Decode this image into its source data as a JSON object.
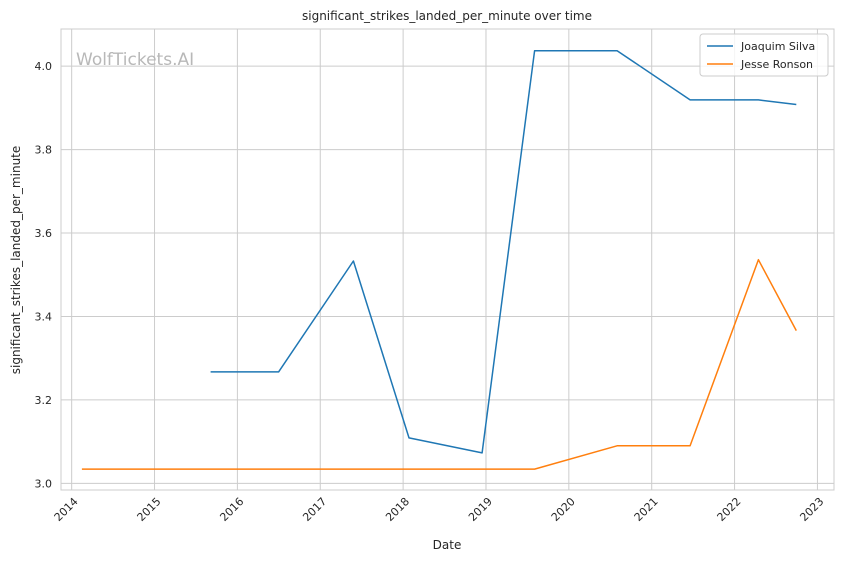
{
  "chart_data": {
    "type": "line",
    "title": "significant_strikes_landed_per_minute over time",
    "xlabel": "Date",
    "ylabel": "significant_strikes_landed_per_minute",
    "watermark": "WolfTickets.AI",
    "x_ticks": [
      "2014",
      "2015",
      "2016",
      "2017",
      "2018",
      "2019",
      "2020",
      "2021",
      "2022",
      "2023"
    ],
    "y_ticks": [
      "3.0",
      "3.2",
      "3.4",
      "3.6",
      "3.8",
      "4.0"
    ],
    "xlim": [
      "2013-11-15",
      "2023-03-15"
    ],
    "ylim": [
      2.984,
      4.089
    ],
    "grid": true,
    "legend_position": "top-right",
    "series": [
      {
        "name": "Joaquim Silva",
        "color": "#1f77b4",
        "points": [
          [
            "2015-09-05",
            3.267
          ],
          [
            "2016-07-01",
            3.267
          ],
          [
            "2017-05-27",
            3.533
          ],
          [
            "2018-01-27",
            3.109
          ],
          [
            "2018-12-15",
            3.073
          ],
          [
            "2019-08-03",
            4.037
          ],
          [
            "2020-08-01",
            4.037
          ],
          [
            "2021-06-19",
            3.919
          ],
          [
            "2022-04-16",
            3.919
          ],
          [
            "2022-09-30",
            3.908
          ]
        ]
      },
      {
        "name": "Jesse Ronson",
        "color": "#ff7f0e",
        "points": [
          [
            "2014-02-15",
            3.034
          ],
          [
            "2019-08-03",
            3.034
          ],
          [
            "2020-08-01",
            3.09
          ],
          [
            "2021-06-19",
            3.09
          ],
          [
            "2022-04-16",
            3.536
          ],
          [
            "2022-09-30",
            3.366
          ]
        ]
      }
    ]
  }
}
